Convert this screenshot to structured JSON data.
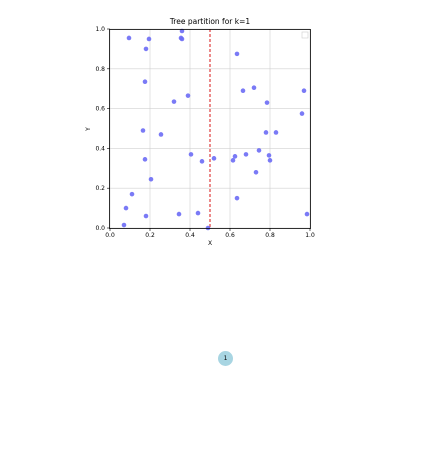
{
  "chart_data": {
    "type": "scatter",
    "title": "Tree partition for k=1",
    "xlabel": "X",
    "ylabel": "Y",
    "xlim": [
      0.0,
      1.0
    ],
    "ylim": [
      0.0,
      1.0
    ],
    "xticks": [
      "0.0",
      "0.2",
      "0.4",
      "0.6",
      "0.8",
      "1.0"
    ],
    "yticks": [
      "0.0",
      "0.2",
      "0.4",
      "0.6",
      "0.8",
      "1.0"
    ],
    "grid": true,
    "legend": "top-right",
    "point_color": "#6b6bf5",
    "split_line": {
      "orientation": "vertical",
      "x": 0.5,
      "color": "#e03c3c",
      "style": "dashed"
    },
    "points": [
      [
        0.095,
        0.955
      ],
      [
        0.195,
        0.95
      ],
      [
        0.18,
        0.9
      ],
      [
        0.36,
        0.99
      ],
      [
        0.355,
        0.955
      ],
      [
        0.36,
        0.95
      ],
      [
        0.635,
        0.875
      ],
      [
        0.175,
        0.735
      ],
      [
        0.39,
        0.665
      ],
      [
        0.32,
        0.635
      ],
      [
        0.665,
        0.69
      ],
      [
        0.72,
        0.705
      ],
      [
        0.785,
        0.63
      ],
      [
        0.97,
        0.69
      ],
      [
        0.96,
        0.575
      ],
      [
        0.165,
        0.49
      ],
      [
        0.255,
        0.47
      ],
      [
        0.78,
        0.48
      ],
      [
        0.83,
        0.48
      ],
      [
        0.745,
        0.39
      ],
      [
        0.175,
        0.345
      ],
      [
        0.405,
        0.37
      ],
      [
        0.46,
        0.335
      ],
      [
        0.52,
        0.35
      ],
      [
        0.615,
        0.34
      ],
      [
        0.625,
        0.36
      ],
      [
        0.68,
        0.37
      ],
      [
        0.795,
        0.365
      ],
      [
        0.8,
        0.34
      ],
      [
        0.73,
        0.28
      ],
      [
        0.205,
        0.245
      ],
      [
        0.11,
        0.17
      ],
      [
        0.635,
        0.15
      ],
      [
        0.08,
        0.1
      ],
      [
        0.18,
        0.06
      ],
      [
        0.345,
        0.07
      ],
      [
        0.44,
        0.075
      ],
      [
        0.49,
        0.0
      ],
      [
        0.07,
        0.015
      ],
      [
        0.985,
        0.07
      ]
    ]
  },
  "tree": {
    "node_label": "1"
  }
}
